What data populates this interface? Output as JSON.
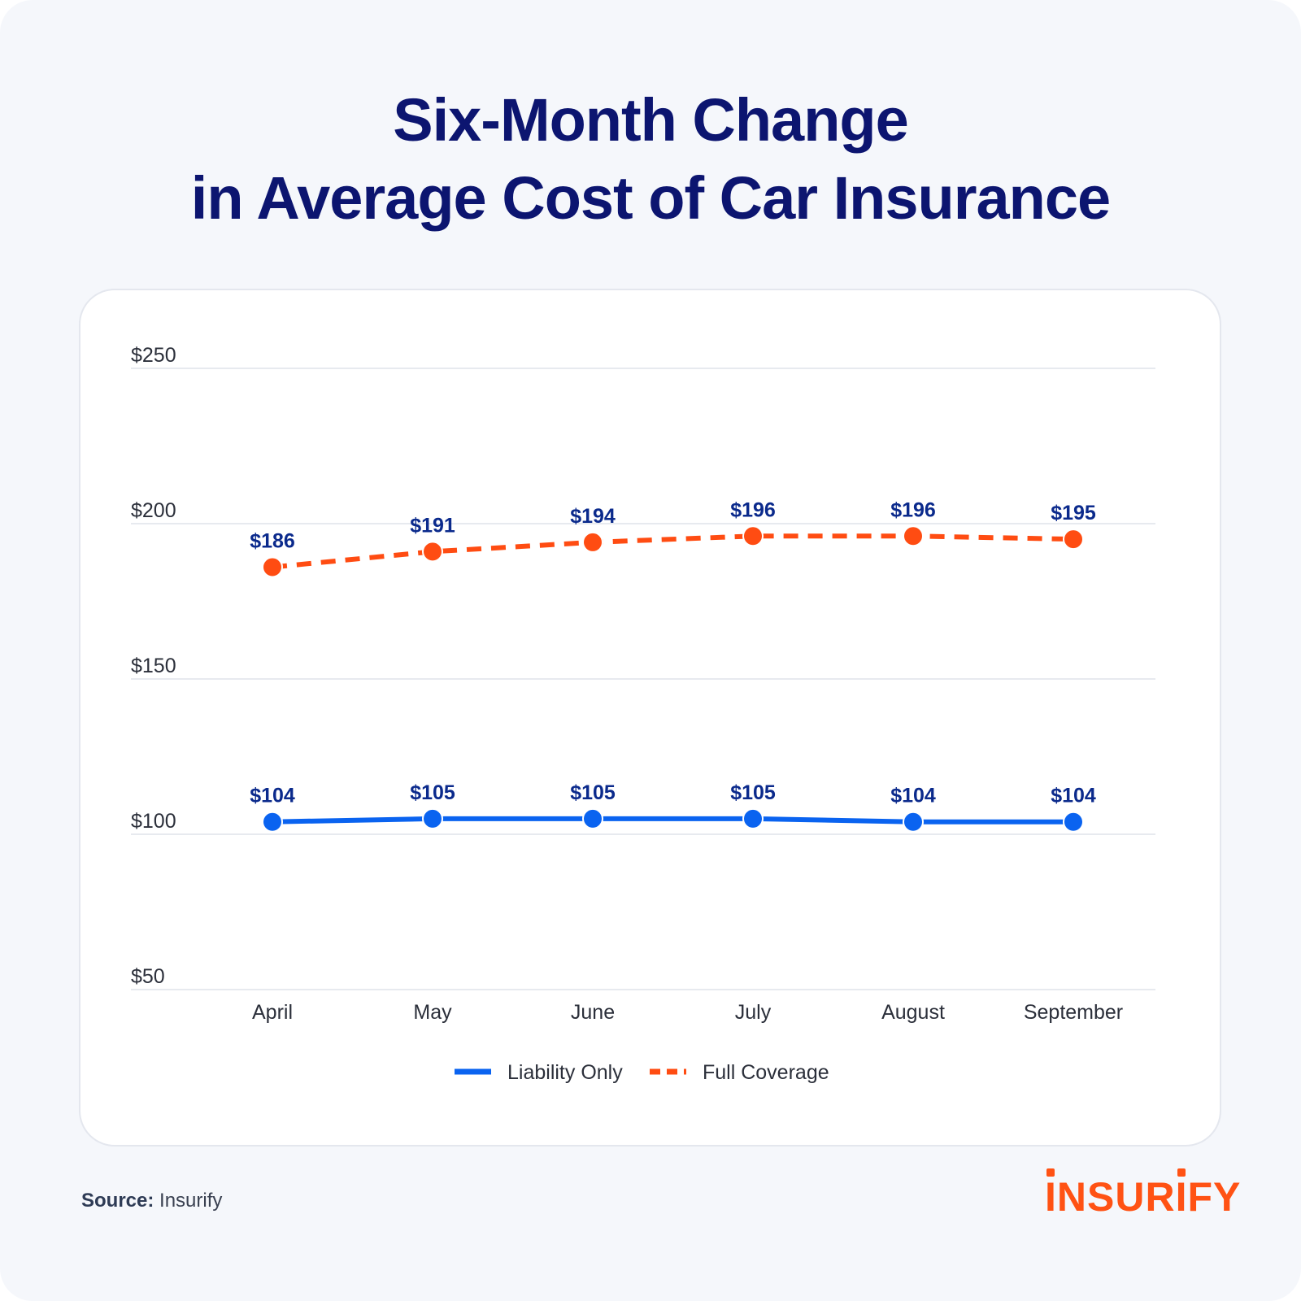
{
  "title_lines": [
    "Six-Month Change",
    "in Average Cost of Car Insurance"
  ],
  "source_label": "Source:",
  "source_value": "Insurify",
  "logo_text": "INSURIFY",
  "colors": {
    "liability": "#0a63f0",
    "full_coverage": "#ff4c12",
    "data_label": "#0b2a8c",
    "title": "#0c1570",
    "grid": "#dfe3ea"
  },
  "chart_data": {
    "type": "line",
    "title": "Six-Month Change in Average Cost of Car Insurance",
    "xlabel": "",
    "ylabel": "",
    "categories": [
      "April",
      "May",
      "June",
      "July",
      "August",
      "September"
    ],
    "y_ticks": [
      50,
      100,
      150,
      200,
      250
    ],
    "y_tick_labels": [
      "$50",
      "$100",
      "$150",
      "$200",
      "$250"
    ],
    "ylim": [
      50,
      250
    ],
    "grid": true,
    "legend_position": "bottom-center",
    "series": [
      {
        "name": "Liability Only",
        "style": "solid",
        "values": [
          104,
          105,
          105,
          105,
          104,
          104
        ],
        "labels": [
          "$104",
          "$105",
          "$105",
          "$105",
          "$104",
          "$104"
        ]
      },
      {
        "name": "Full Coverage",
        "style": "dashed",
        "values": [
          186,
          191,
          194,
          196,
          196,
          195
        ],
        "labels": [
          "$186",
          "$191",
          "$194",
          "$196",
          "$196",
          "$195"
        ]
      }
    ]
  }
}
